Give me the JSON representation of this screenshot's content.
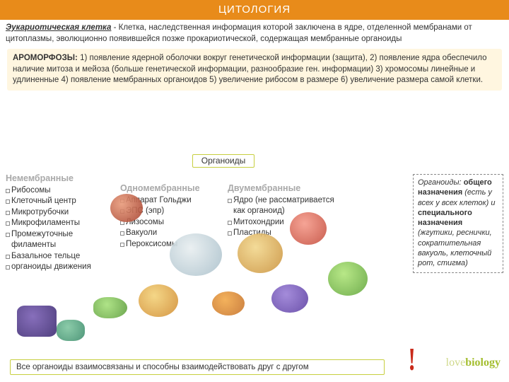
{
  "title": "ЦИТОЛОГИЯ",
  "definition": {
    "term": "Эукариотическая клетка",
    "text": " -  Клетка, наследственная информация которой заключена в ядре, отделенной мембранами от цитоплазмы, эволюционно появившейся позже прокариотической, содержащая мембранные органоиды"
  },
  "aromorph": {
    "label": "АРОМОРФОЗЫ:",
    "text": " 1) появление ядерной оболочки вокруг генетической информации (защита), 2) появление ядра обеспечило наличие митоза и мейоза (больше генетической информации, разнообразие ген. информации) 3)  хромосомы линейные и удлиненные 4) появление мембранных органоидов 5) увеличение рибосом в размере 6) увеличение размера самой клетки."
  },
  "tag": "Органоиды",
  "col1": {
    "header": "Немембранные",
    "items": [
      "Рибосомы",
      "Клеточный центр",
      "Микротрубочки",
      "Микрофиламенты",
      "Промежуточные филаменты",
      "Базальное тельце",
      " органоиды движения"
    ]
  },
  "col2": {
    "header": "Одномембранные",
    "items": [
      "Аппарат Гольджи",
      "ЭПС (эпр)",
      "Лизосомы",
      "Вакуоли",
      "Пероксисомы"
    ]
  },
  "col3": {
    "header": "Двумембранные",
    "items": [
      "Ядро (не рассматривается как органоид)",
      "Митохондрии",
      "Пластиды"
    ]
  },
  "col4": {
    "lead": "Органоиды:",
    "t1": " общего назначения ",
    "t2": "(есть у всех у всех клеток) и ",
    "t3": "специального назначения ",
    "t4": "(жгутики, реснички, сократительная вакуоль, клеточный рот, стигма)"
  },
  "footer": "Все органоиды взаимосвязаны и способны взаимодействовать друг с другом",
  "logo": {
    "a": "love",
    "b": "biology"
  },
  "colors": {
    "accent_orange": "#e88b1a",
    "box_border": "#c7cf3f",
    "aromorph_bg": "#fff6e0",
    "header_gray": "#a9a9a9",
    "logo_light": "#cfd88a",
    "logo_dark": "#a4be2f",
    "exclaim": "#c92a1a"
  }
}
